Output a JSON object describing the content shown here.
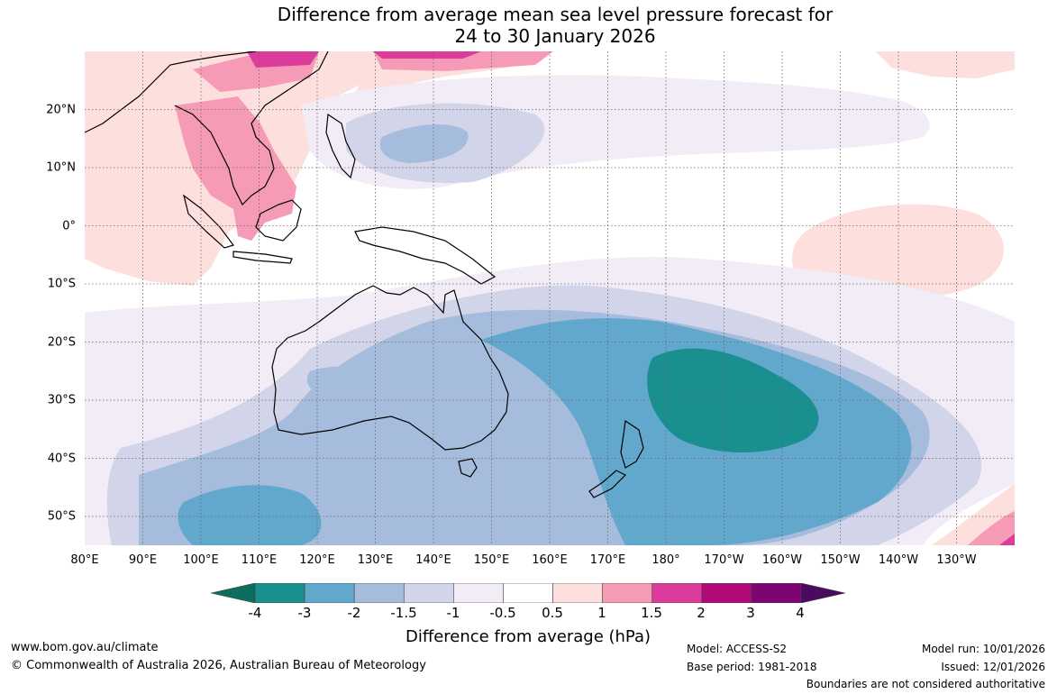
{
  "title": {
    "line1": "Difference from average mean sea level pressure forecast for",
    "line2": "24 to 30 January 2026"
  },
  "map": {
    "projection": "equirectangular",
    "lon_range": [
      80,
      240
    ],
    "lat_range": [
      -55,
      30
    ],
    "longitude_labels": [
      "80°E",
      "90°E",
      "100°E",
      "110°E",
      "120°E",
      "130°E",
      "140°E",
      "150°E",
      "160°E",
      "170°E",
      "180°",
      "170°W",
      "160°W",
      "150°W",
      "140°W",
      "130°W"
    ],
    "latitude_labels": [
      "20°N",
      "10°N",
      "0°",
      "10°S",
      "20°S",
      "30°S",
      "40°S",
      "50°S"
    ],
    "gridlines": "dotted"
  },
  "colorbar": {
    "ticks": [
      "-4",
      "-3",
      "-2",
      "-1.5",
      "-1",
      "-0.5",
      "0.5",
      "1",
      "1.5",
      "2",
      "3",
      "4"
    ],
    "colors": [
      "#0b6e5e",
      "#1a8f8f",
      "#62a7cc",
      "#a6bcdd",
      "#d2d4e9",
      "#f1ecf5",
      "#ffffff",
      "#fde0de",
      "#f59bb5",
      "#dc3c9b",
      "#b0097a",
      "#7e0474",
      "#4a0a5e"
    ],
    "label": "Difference from average (hPa)"
  },
  "footer": {
    "url": "www.bom.gov.au/climate",
    "copyright": "© Commonwealth of Australia 2026, Australian Bureau of Meteorology",
    "model": "Model: ACCESS-S2",
    "base_period": "Base period: 1981-2018",
    "model_run": "Model run: 10/01/2026",
    "issued": "Issued: 12/01/2026",
    "disclaimer": "Boundaries are not considered authoritative"
  }
}
